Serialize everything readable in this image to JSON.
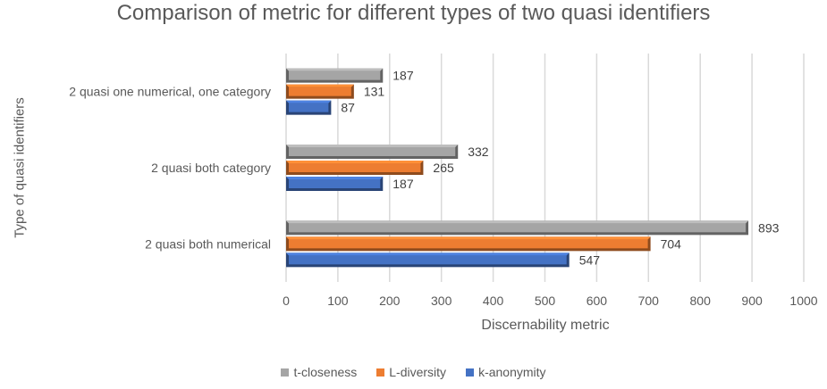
{
  "chart_data": {
    "type": "bar",
    "orientation": "horizontal",
    "title": "Comparison of metric for different types of two quasi identifiers",
    "xlabel": "Discernability metric",
    "ylabel": "Type of quasi identifiers",
    "categories": [
      "2 quasi both numerical",
      "2 quasi both  category",
      "2 quasi one numerical, one category"
    ],
    "series": [
      {
        "name": "k-anonymity",
        "values": [
          547,
          187,
          87
        ],
        "color": "#4472C4"
      },
      {
        "name": "L-diversity",
        "values": [
          704,
          265,
          131
        ],
        "color": "#ED7D31"
      },
      {
        "name": "t-closeness",
        "values": [
          893,
          332,
          187
        ],
        "color": "#A5A5A5"
      }
    ],
    "xlim": [
      0,
      1000
    ],
    "xticks": [
      "0",
      "100",
      "200",
      "300",
      "400",
      "500",
      "600",
      "700",
      "800",
      "900",
      "1000"
    ],
    "grid": true,
    "legend_position": "bottom"
  }
}
